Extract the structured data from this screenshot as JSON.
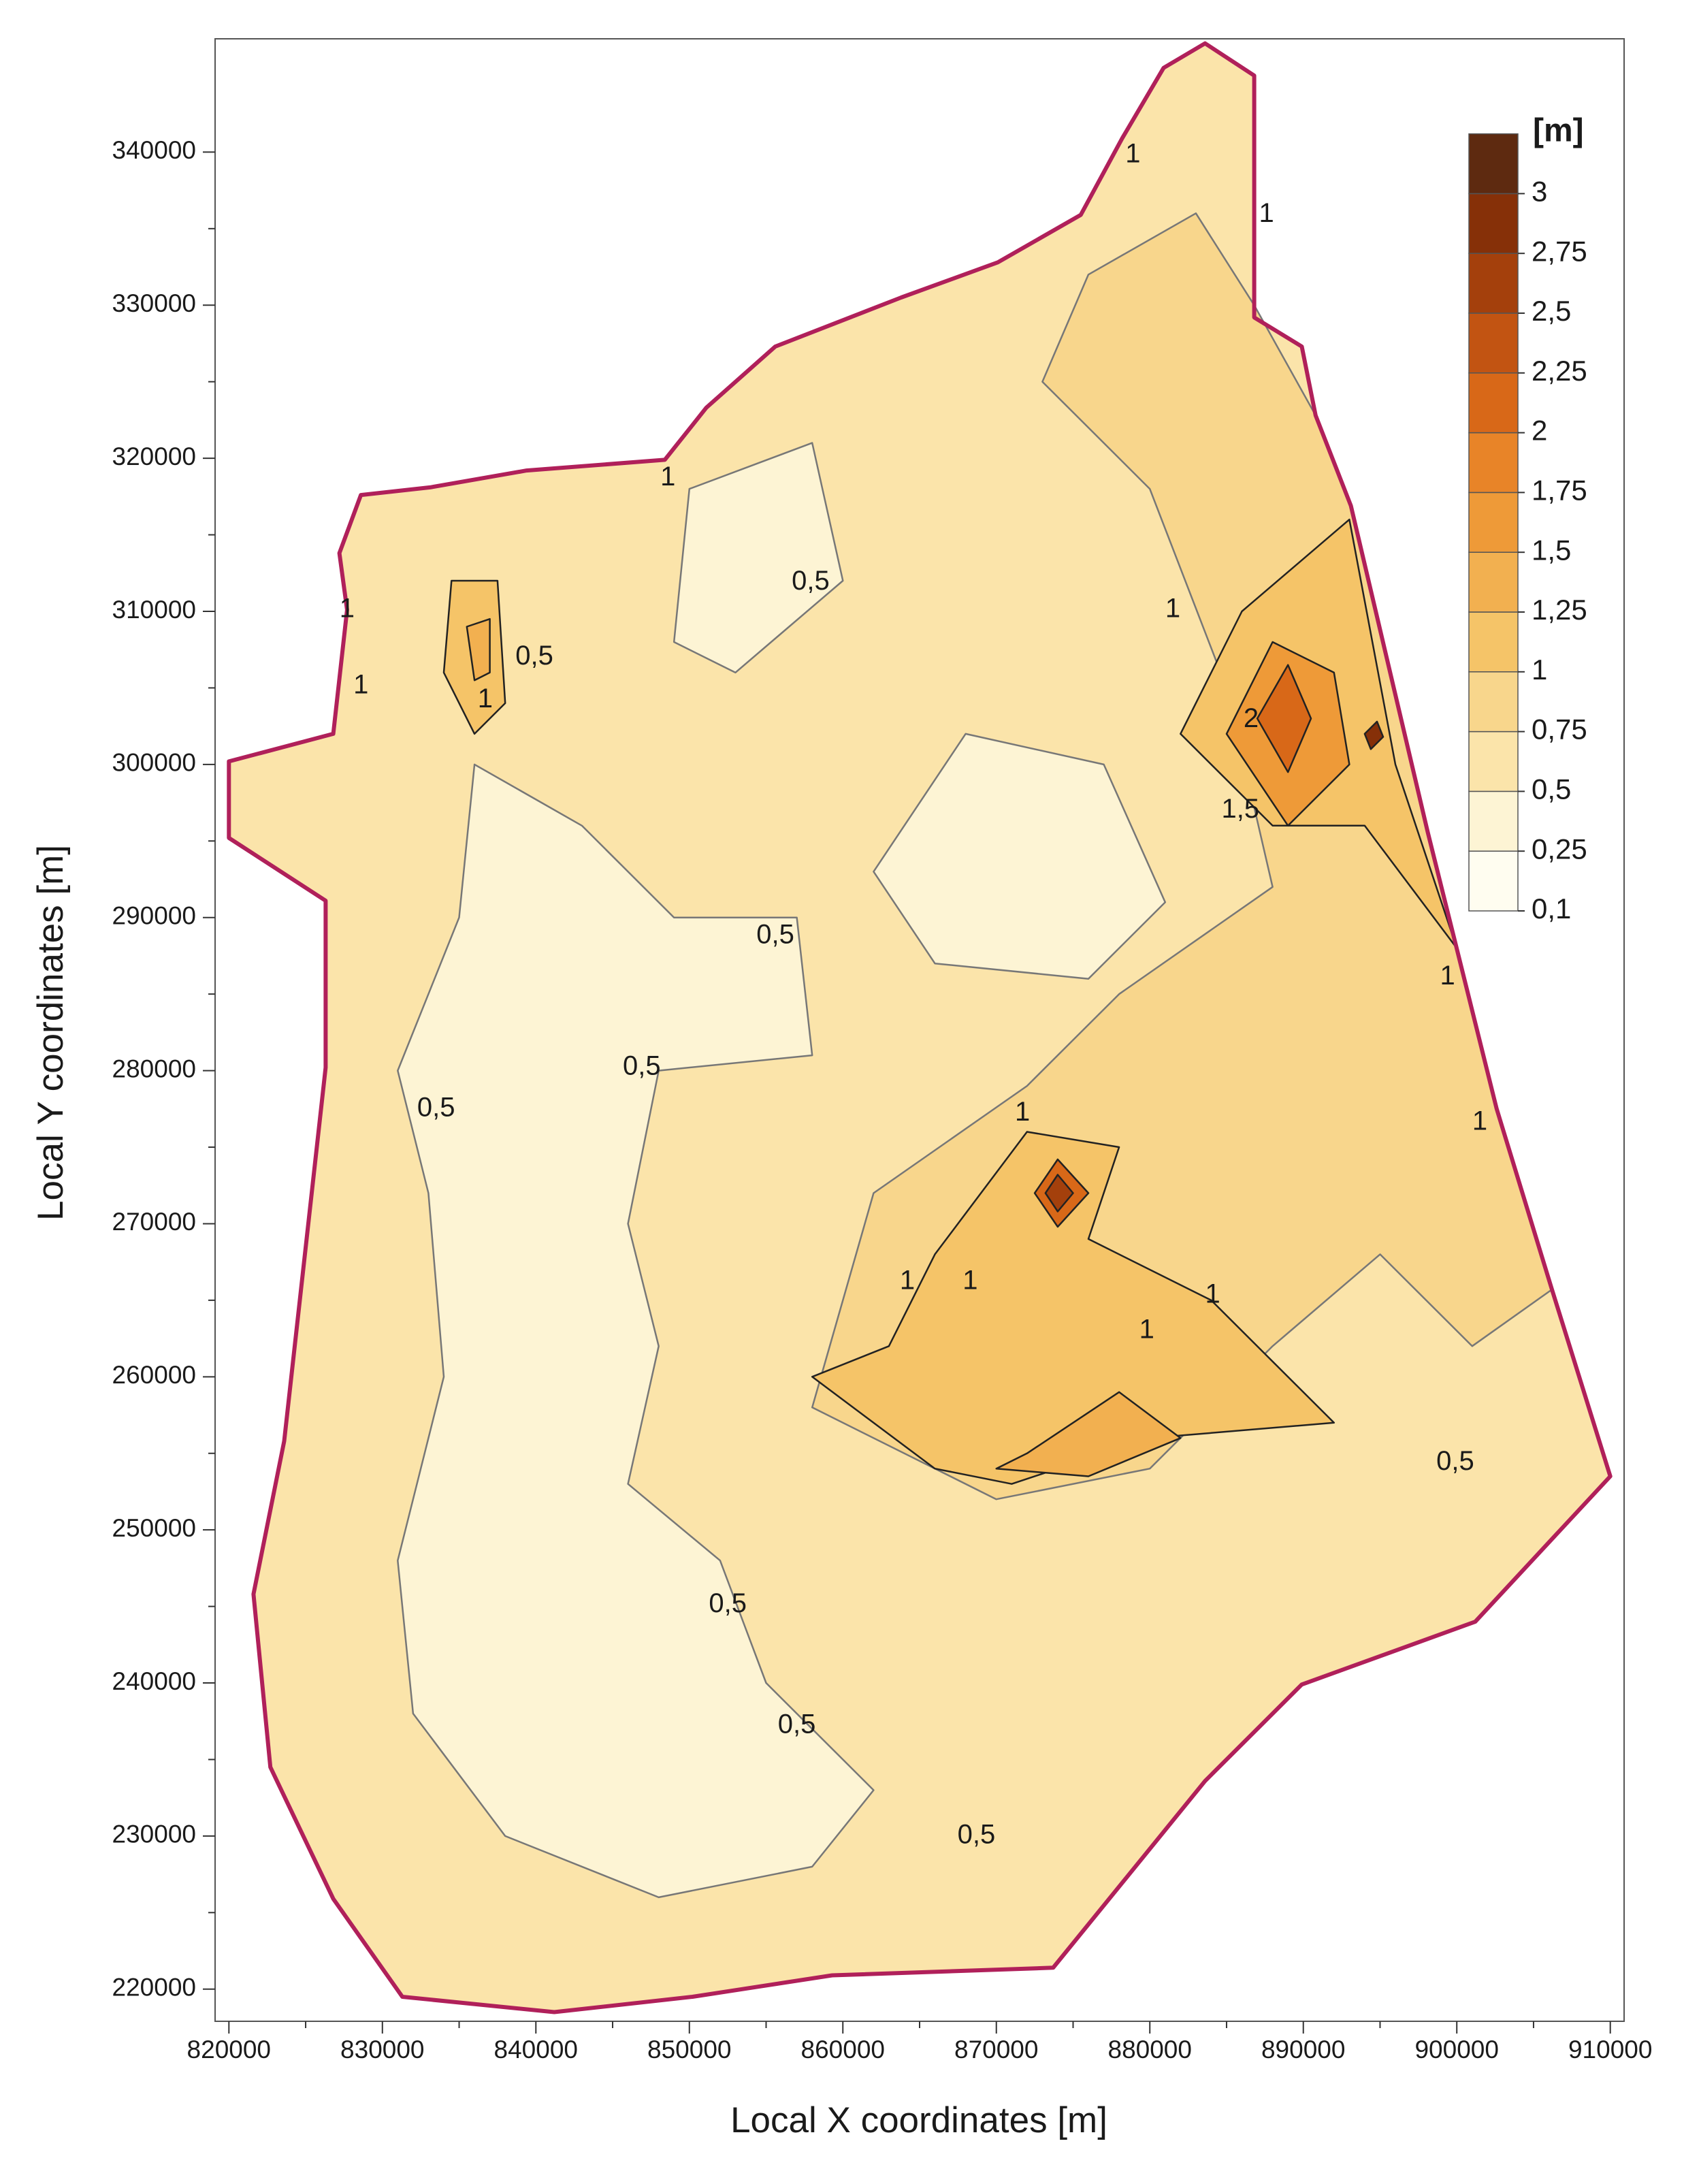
{
  "chart_data": {
    "type": "contour_map",
    "xlabel": "Local X coordinates [m]",
    "ylabel": "Local Y coordinates [m]",
    "xlim": [
      819100,
      910900
    ],
    "ylim": [
      217900,
      347400
    ],
    "xticks": [
      820000,
      830000,
      840000,
      850000,
      860000,
      870000,
      880000,
      890000,
      900000,
      910000
    ],
    "yticks": [
      220000,
      230000,
      240000,
      250000,
      260000,
      270000,
      280000,
      290000,
      300000,
      310000,
      320000,
      330000,
      340000
    ],
    "boundary": {
      "color": "#b0205a",
      "x": [
        820000,
        826800,
        827700,
        827200,
        828600,
        833100,
        839400,
        848400,
        851100,
        855600,
        863800,
        870100,
        875500,
        878200,
        880900,
        883600,
        886800,
        886800,
        886800,
        889900,
        890800,
        893100,
        898100,
        902600,
        906200,
        910000,
        906200,
        901200,
        889900,
        883600,
        873700,
        859300,
        850200,
        841200,
        831300,
        826800,
        822700,
        821600,
        823600,
        826300,
        826300,
        820000
      ],
      "y": [
        300200,
        302000,
        310100,
        313800,
        317600,
        318100,
        319200,
        319900,
        323300,
        327300,
        330500,
        332800,
        335900,
        340900,
        345500,
        347100,
        345000,
        336400,
        329200,
        327300,
        322800,
        316900,
        295600,
        277500,
        265700,
        253500,
        249400,
        244000,
        239900,
        233600,
        221400,
        220900,
        219500,
        218500,
        219500,
        225900,
        234500,
        245800,
        255800,
        280200,
        291100,
        295200
      ],
      "level": 0.5
    },
    "colorbar": {
      "title": "[m]",
      "levels": [
        {
          "value": 0.1,
          "label": "0,1"
        },
        {
          "value": 0.25,
          "label": "0,25"
        },
        {
          "value": 0.5,
          "label": "0,5"
        },
        {
          "value": 0.75,
          "label": "0,75"
        },
        1,
        {
          "value": 1.25,
          "label": "1,25"
        },
        {
          "value": 1.5,
          "label": "1,5"
        },
        {
          "value": 1.75,
          "label": "1,75"
        },
        2,
        {
          "value": 2.25,
          "label": "2,25"
        },
        {
          "value": 2.5,
          "label": "2,5"
        },
        {
          "value": 2.75,
          "label": "2,75"
        },
        3
      ],
      "colors": [
        "#fffdf0",
        "#fdf4d4",
        "#fbe4aa",
        "#f8d68c",
        "#f5c468",
        "#f2b050",
        "#ee9a38",
        "#e88428",
        "#d86818",
        "#c25412",
        "#a4400c",
        "#863008",
        "#5e2a10"
      ]
    },
    "zones": [
      {
        "level": 0.25,
        "x": [
          836000,
          843000,
          849000,
          857000,
          858000,
          848000,
          846000,
          848000,
          846000,
          852000,
          855000,
          862000,
          858000,
          848000,
          838000,
          832000,
          831000,
          834000,
          833000,
          831000,
          835000
        ],
        "y": [
          300000,
          296000,
          290000,
          290000,
          281000,
          280000,
          270000,
          262000,
          253000,
          248000,
          240000,
          233000,
          228000,
          226000,
          230000,
          238000,
          248000,
          260000,
          272000,
          280000,
          290000
        ]
      },
      {
        "level": 0.25,
        "x": [
          850000,
          858000,
          860000,
          853000,
          849000
        ],
        "y": [
          318000,
          321000,
          312000,
          306000,
          308000
        ]
      },
      {
        "level": 0.25,
        "x": [
          868000,
          877000,
          881000,
          876000,
          866000,
          862000
        ],
        "y": [
          302000,
          300000,
          291000,
          286000,
          287000,
          293000
        ]
      },
      {
        "level": 0.75,
        "x": [
          862000,
          872000,
          878000,
          888000,
          885000,
          880000,
          873000,
          876000,
          883000,
          886800,
          890800,
          893100,
          898100,
          902600,
          906200,
          901000,
          895000,
          888000,
          880000,
          870000,
          858000
        ],
        "y": [
          272000,
          279000,
          285000,
          292000,
          305000,
          318000,
          325000,
          332000,
          336000,
          330000,
          322800,
          316900,
          295600,
          277500,
          265700,
          262000,
          268000,
          262000,
          254000,
          252000,
          258000
        ]
      },
      {
        "level": 1,
        "x": [
          863000,
          866000,
          872000,
          878000,
          876000,
          884000,
          892000,
          880000,
          871000,
          866000,
          858000
        ],
        "y": [
          262000,
          268000,
          276000,
          275000,
          269000,
          265000,
          257000,
          256000,
          253000,
          254000,
          260000
        ]
      },
      {
        "level": 1.25,
        "x": [
          872000,
          878000,
          882000,
          876000,
          870000
        ],
        "y": [
          255000,
          259000,
          256000,
          253500,
          254000
        ]
      },
      {
        "level": 1,
        "x": [
          882000,
          886000,
          893000,
          896000,
          900000,
          894000,
          888000
        ],
        "y": [
          302000,
          310000,
          316000,
          300000,
          288000,
          296000,
          296000
        ]
      },
      {
        "level": 1.5,
        "x": [
          885000,
          888000,
          892000,
          893000,
          889000
        ],
        "y": [
          302000,
          308000,
          306000,
          300000,
          296000
        ]
      },
      {
        "level": 2,
        "x": [
          887000,
          889000,
          890500,
          889000
        ],
        "y": [
          303000,
          306500,
          303000,
          299500
        ]
      },
      {
        "level": 2,
        "x": [
          872500,
          874000,
          876000,
          874000
        ],
        "y": [
          272000,
          274200,
          272000,
          269800
        ]
      },
      {
        "level": 2.5,
        "x": [
          873200,
          874000,
          875000,
          874000
        ],
        "y": [
          272000,
          273200,
          272000,
          270800
        ]
      },
      {
        "level": 1,
        "x": [
          834500,
          837500,
          838000,
          836000,
          834000
        ],
        "y": [
          312000,
          312000,
          304000,
          302000,
          306000
        ]
      },
      {
        "level": 1.25,
        "x": [
          835500,
          837000,
          837000,
          836000
        ],
        "y": [
          309000,
          309500,
          306000,
          305500
        ]
      },
      {
        "level": 2.75,
        "x": [
          894000,
          894800,
          895200,
          894400
        ],
        "y": [
          302000,
          302800,
          301800,
          301000
        ]
      }
    ],
    "contour_labels": [
      {
        "value": 0.5,
        "label": "0,5",
        "x": 857900,
        "y": 311900
      },
      {
        "value": 0.5,
        "label": "0,5",
        "x": 839900,
        "y": 307000
      },
      {
        "value": 0.5,
        "label": "0,5",
        "x": 855600,
        "y": 288800
      },
      {
        "value": 0.5,
        "label": "0,5",
        "x": 846900,
        "y": 280200
      },
      {
        "value": 0.5,
        "label": "0,5",
        "x": 833500,
        "y": 277500
      },
      {
        "value": 0.5,
        "label": "0,5",
        "x": 852500,
        "y": 245100
      },
      {
        "value": 0.5,
        "label": "0,5",
        "x": 857000,
        "y": 237200
      },
      {
        "value": 0.5,
        "label": "0,5",
        "x": 868700,
        "y": 230000
      },
      {
        "value": 0.5,
        "label": "0,5",
        "x": 899900,
        "y": 254400
      },
      {
        "value": 1,
        "label": "1",
        "x": 878900,
        "y": 339800
      },
      {
        "value": 1,
        "label": "1",
        "x": 887600,
        "y": 335900
      },
      {
        "value": 1,
        "label": "1",
        "x": 848600,
        "y": 318700
      },
      {
        "value": 1,
        "label": "1",
        "x": 881500,
        "y": 310100
      },
      {
        "value": 1,
        "label": "1",
        "x": 871700,
        "y": 277200
      },
      {
        "value": 1,
        "label": "1",
        "x": 864200,
        "y": 266200
      },
      {
        "value": 1,
        "label": "1",
        "x": 868300,
        "y": 266200
      },
      {
        "value": 1,
        "label": "1",
        "x": 879800,
        "y": 263000
      },
      {
        "value": 1,
        "label": "1",
        "x": 884100,
        "y": 265300
      },
      {
        "value": 1,
        "label": "1",
        "x": 899400,
        "y": 286100
      },
      {
        "value": 1,
        "label": "1",
        "x": 901500,
        "y": 276600
      },
      {
        "value": 1,
        "label": "1",
        "x": 827700,
        "y": 310100
      },
      {
        "value": 1,
        "label": "1",
        "x": 828600,
        "y": 305100
      },
      {
        "value": 1,
        "label": "1",
        "x": 836700,
        "y": 304200
      },
      {
        "value": 1.5,
        "label": "1,5",
        "x": 885900,
        "y": 297000
      },
      {
        "value": 2,
        "label": "2",
        "x": 886600,
        "y": 302900
      }
    ]
  }
}
